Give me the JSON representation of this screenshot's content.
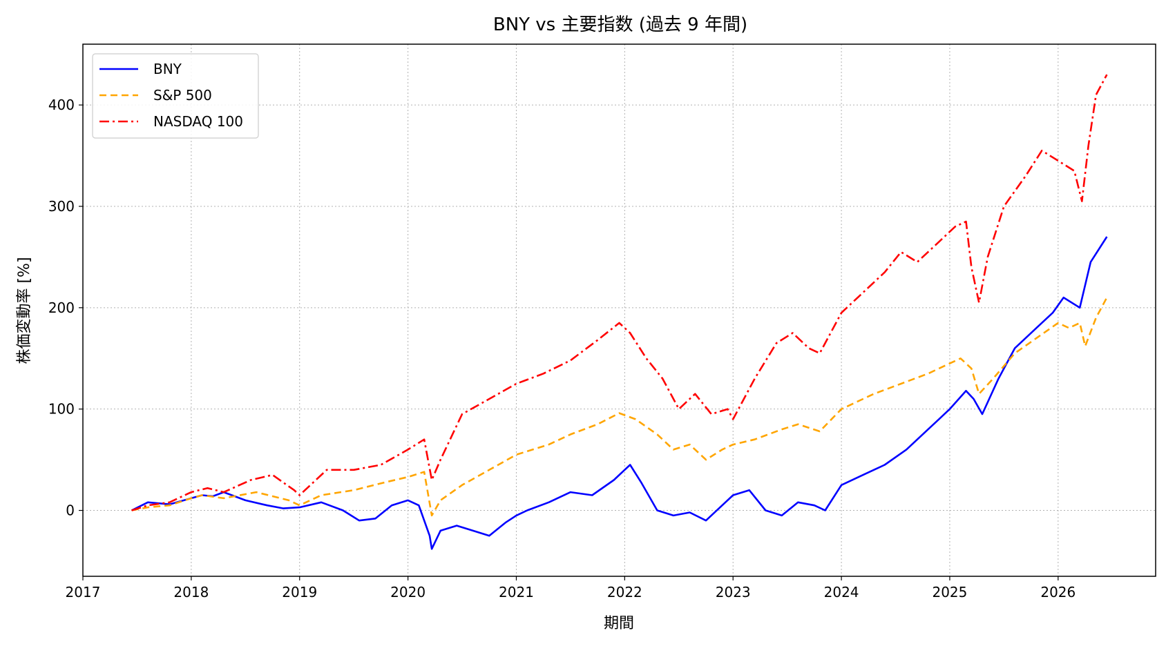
{
  "chart_data": {
    "type": "line",
    "title": "BNY vs 主要指数 (過去 9 年間)",
    "xlabel": "期間",
    "ylabel": "株価変動率 [%]",
    "xlim": [
      2017.0,
      2026.9
    ],
    "ylim": [
      -65,
      460
    ],
    "x_ticks": [
      2017,
      2018,
      2019,
      2020,
      2021,
      2022,
      2023,
      2024,
      2025,
      2026
    ],
    "x_tick_labels": [
      "2017",
      "2018",
      "2019",
      "2020",
      "2021",
      "2022",
      "2023",
      "2024",
      "2025",
      "2026"
    ],
    "y_ticks": [
      0,
      100,
      200,
      300,
      400
    ],
    "y_tick_labels": [
      "0",
      "100",
      "200",
      "300",
      "400"
    ],
    "grid": true,
    "legend_position": "top-left",
    "series": [
      {
        "name": "BNY",
        "color": "#0000ff",
        "style": "solid",
        "x": [
          2017.45,
          2017.6,
          2017.8,
          2018.0,
          2018.1,
          2018.2,
          2018.3,
          2018.5,
          2018.7,
          2018.85,
          2019.0,
          2019.2,
          2019.4,
          2019.55,
          2019.7,
          2019.85,
          2020.0,
          2020.1,
          2020.2,
          2020.22,
          2020.3,
          2020.45,
          2020.6,
          2020.75,
          2020.9,
          2021.0,
          2021.1,
          2021.3,
          2021.5,
          2021.7,
          2021.9,
          2022.0,
          2022.05,
          2022.15,
          2022.3,
          2022.45,
          2022.6,
          2022.75,
          2022.9,
          2023.0,
          2023.15,
          2023.3,
          2023.45,
          2023.6,
          2023.75,
          2023.85,
          2024.0,
          2024.2,
          2024.4,
          2024.6,
          2024.8,
          2024.9,
          2025.0,
          2025.15,
          2025.22,
          2025.3,
          2025.45,
          2025.6,
          2025.8,
          2025.95,
          2026.05,
          2026.2,
          2026.3,
          2026.45
        ],
        "values": [
          0,
          8,
          6,
          12,
          15,
          14,
          18,
          10,
          5,
          2,
          3,
          8,
          0,
          -10,
          -8,
          5,
          10,
          5,
          -25,
          -38,
          -20,
          -15,
          -20,
          -25,
          -12,
          -5,
          0,
          8,
          18,
          15,
          30,
          40,
          45,
          28,
          0,
          -5,
          -2,
          -10,
          5,
          15,
          20,
          0,
          -5,
          8,
          5,
          0,
          25,
          35,
          45,
          60,
          80,
          90,
          100,
          118,
          110,
          95,
          130,
          160,
          180,
          195,
          210,
          200,
          245,
          270
        ]
      },
      {
        "name": "S&P 500",
        "color": "#ffa500",
        "style": "dashed",
        "x": [
          2017.45,
          2017.6,
          2017.8,
          2018.0,
          2018.1,
          2018.3,
          2018.6,
          2018.9,
          2019.0,
          2019.2,
          2019.5,
          2019.8,
          2020.0,
          2020.15,
          2020.22,
          2020.3,
          2020.5,
          2020.75,
          2021.0,
          2021.3,
          2021.5,
          2021.75,
          2021.95,
          2022.1,
          2022.3,
          2022.45,
          2022.6,
          2022.75,
          2022.9,
          2023.0,
          2023.2,
          2023.45,
          2023.6,
          2023.8,
          2024.0,
          2024.3,
          2024.55,
          2024.8,
          2025.0,
          2025.1,
          2025.2,
          2025.27,
          2025.4,
          2025.6,
          2025.8,
          2026.0,
          2026.1,
          2026.2,
          2026.25,
          2026.35,
          2026.45
        ],
        "values": [
          0,
          3,
          5,
          12,
          15,
          12,
          18,
          10,
          5,
          15,
          20,
          28,
          33,
          38,
          -5,
          10,
          25,
          40,
          55,
          65,
          75,
          85,
          96,
          90,
          75,
          60,
          65,
          50,
          60,
          65,
          70,
          80,
          85,
          78,
          100,
          115,
          125,
          135,
          145,
          150,
          140,
          115,
          130,
          155,
          170,
          185,
          180,
          185,
          162,
          190,
          210
        ]
      },
      {
        "name": "NASDAQ 100",
        "color": "#ff0000",
        "style": "dashdot",
        "x": [
          2017.45,
          2017.6,
          2017.8,
          2018.0,
          2018.15,
          2018.3,
          2018.55,
          2018.75,
          2018.95,
          2019.0,
          2019.25,
          2019.5,
          2019.75,
          2020.0,
          2020.15,
          2020.22,
          2020.3,
          2020.5,
          2020.75,
          2021.0,
          2021.25,
          2021.5,
          2021.75,
          2021.95,
          2022.05,
          2022.2,
          2022.35,
          2022.5,
          2022.65,
          2022.8,
          2022.95,
          2023.0,
          2023.2,
          2023.4,
          2023.55,
          2023.7,
          2023.8,
          2024.0,
          2024.2,
          2024.4,
          2024.55,
          2024.7,
          2024.9,
          2025.05,
          2025.15,
          2025.2,
          2025.27,
          2025.35,
          2025.5,
          2025.7,
          2025.85,
          2026.0,
          2026.15,
          2026.22,
          2026.28,
          2026.35,
          2026.45
        ],
        "values": [
          0,
          5,
          8,
          18,
          22,
          18,
          30,
          35,
          20,
          15,
          40,
          40,
          45,
          60,
          70,
          30,
          50,
          95,
          110,
          125,
          135,
          148,
          168,
          185,
          175,
          150,
          130,
          100,
          115,
          95,
          100,
          90,
          130,
          165,
          175,
          160,
          155,
          195,
          215,
          235,
          255,
          245,
          265,
          280,
          285,
          240,
          205,
          250,
          300,
          330,
          355,
          345,
          335,
          305,
          360,
          410,
          430
        ]
      }
    ]
  }
}
